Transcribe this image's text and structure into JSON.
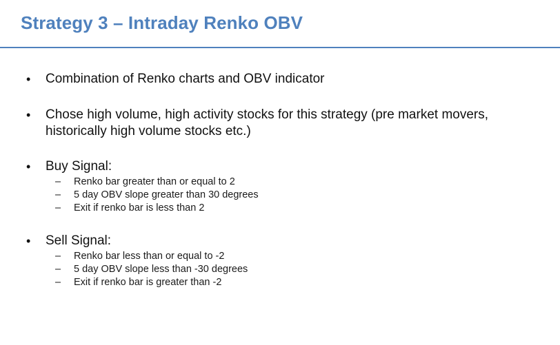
{
  "slide": {
    "title": "Strategy 3 – Intraday Renko OBV",
    "accent_color": "#4f81bd",
    "bullets": [
      {
        "text": "Combination of Renko charts and OBV indicator"
      },
      {
        "text": "Chose high volume, high activity stocks for this strategy (pre market movers, historically high volume stocks etc.)"
      },
      {
        "text": "Buy Signal:",
        "sub": [
          "Renko bar greater than or equal to 2",
          "5 day OBV slope greater than 30 degrees",
          "Exit if renko bar is less than 2"
        ]
      },
      {
        "text": "Sell Signal:",
        "sub": [
          "Renko bar less than or equal to -2",
          "5 day OBV slope less than -30 degrees",
          "Exit if renko bar is greater than -2"
        ]
      }
    ],
    "bullet_glyph": "•",
    "dash_glyph": "–"
  }
}
